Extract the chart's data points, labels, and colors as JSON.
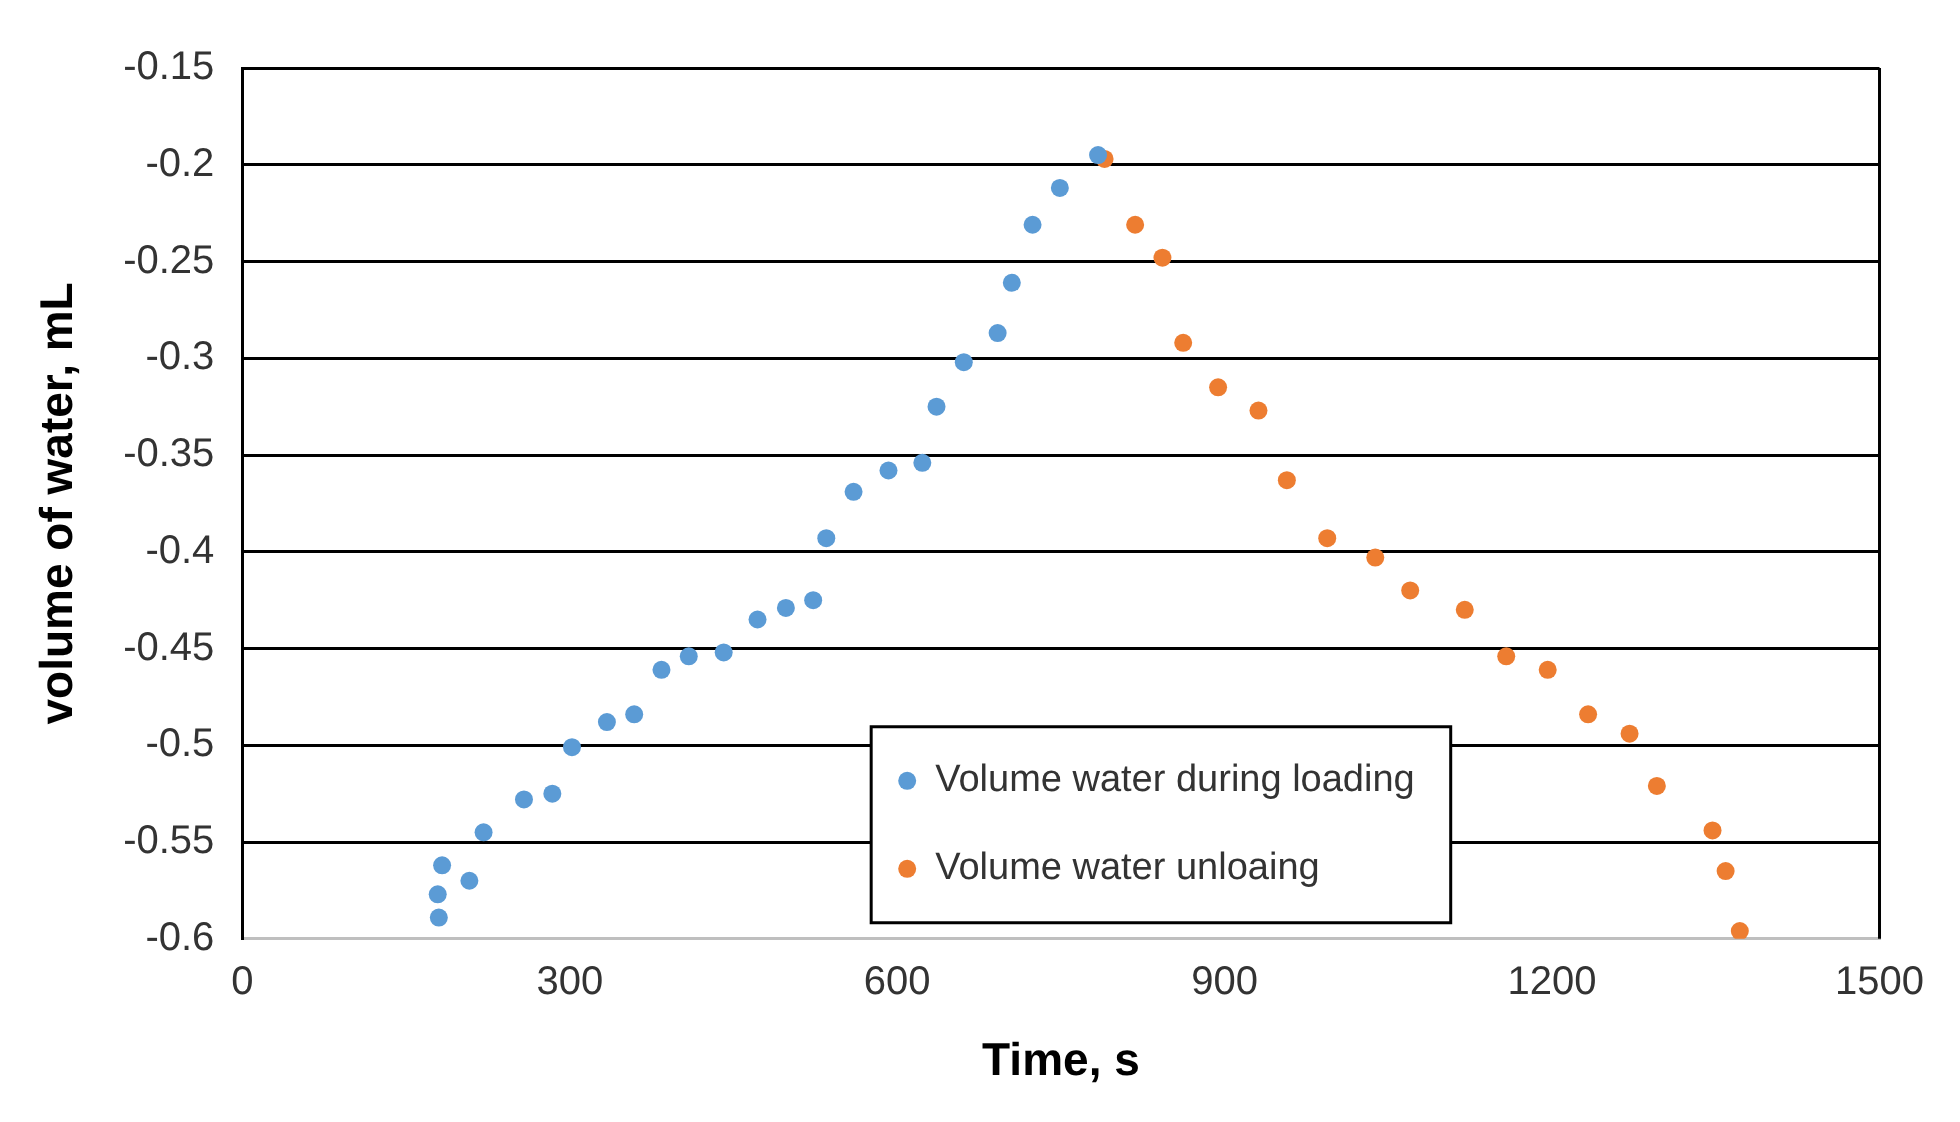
{
  "chart_data": {
    "type": "scatter",
    "xlabel": "Time, s",
    "ylabel": "volume of water, mL",
    "xlim": [
      0,
      1500
    ],
    "xticks": [
      0,
      300,
      600,
      900,
      1200,
      1500
    ],
    "ylim": [
      -0.6,
      -0.15
    ],
    "yticks": [
      -0.6,
      -0.55,
      -0.5,
      -0.45,
      -0.4,
      -0.35,
      -0.3,
      -0.25,
      -0.2,
      -0.15
    ],
    "grid": "y",
    "legend": "bottom",
    "marker": "circle",
    "series": [
      {
        "name": "Volume water during loading",
        "color": "#5b9bd5",
        "x": [
          180,
          179,
          183,
          208,
          221,
          258,
          284,
          302,
          334,
          359,
          384,
          409,
          441,
          472,
          498,
          523,
          535,
          560,
          592,
          623,
          636,
          661,
          692,
          705,
          724,
          749,
          784
        ],
        "values": [
          -0.589,
          -0.577,
          -0.562,
          -0.57,
          -0.545,
          -0.528,
          -0.525,
          -0.501,
          -0.488,
          -0.484,
          -0.461,
          -0.454,
          -0.452,
          -0.435,
          -0.429,
          -0.425,
          -0.393,
          -0.369,
          -0.358,
          -0.354,
          -0.325,
          -0.302,
          -0.287,
          -0.261,
          -0.231,
          -0.212,
          -0.195
        ]
      },
      {
        "name": "Volume water unloaing",
        "color": "#ed7d31",
        "x": [
          790,
          818,
          843,
          862,
          894,
          931,
          957,
          994,
          1038,
          1070,
          1120,
          1158,
          1196,
          1233,
          1271,
          1296,
          1347,
          1359,
          1372
        ],
        "values": [
          -0.197,
          -0.231,
          -0.248,
          -0.292,
          -0.315,
          -0.327,
          -0.363,
          -0.393,
          -0.403,
          -0.42,
          -0.43,
          -0.454,
          -0.461,
          -0.484,
          -0.494,
          -0.521,
          -0.544,
          -0.565,
          -0.596
        ]
      }
    ]
  }
}
